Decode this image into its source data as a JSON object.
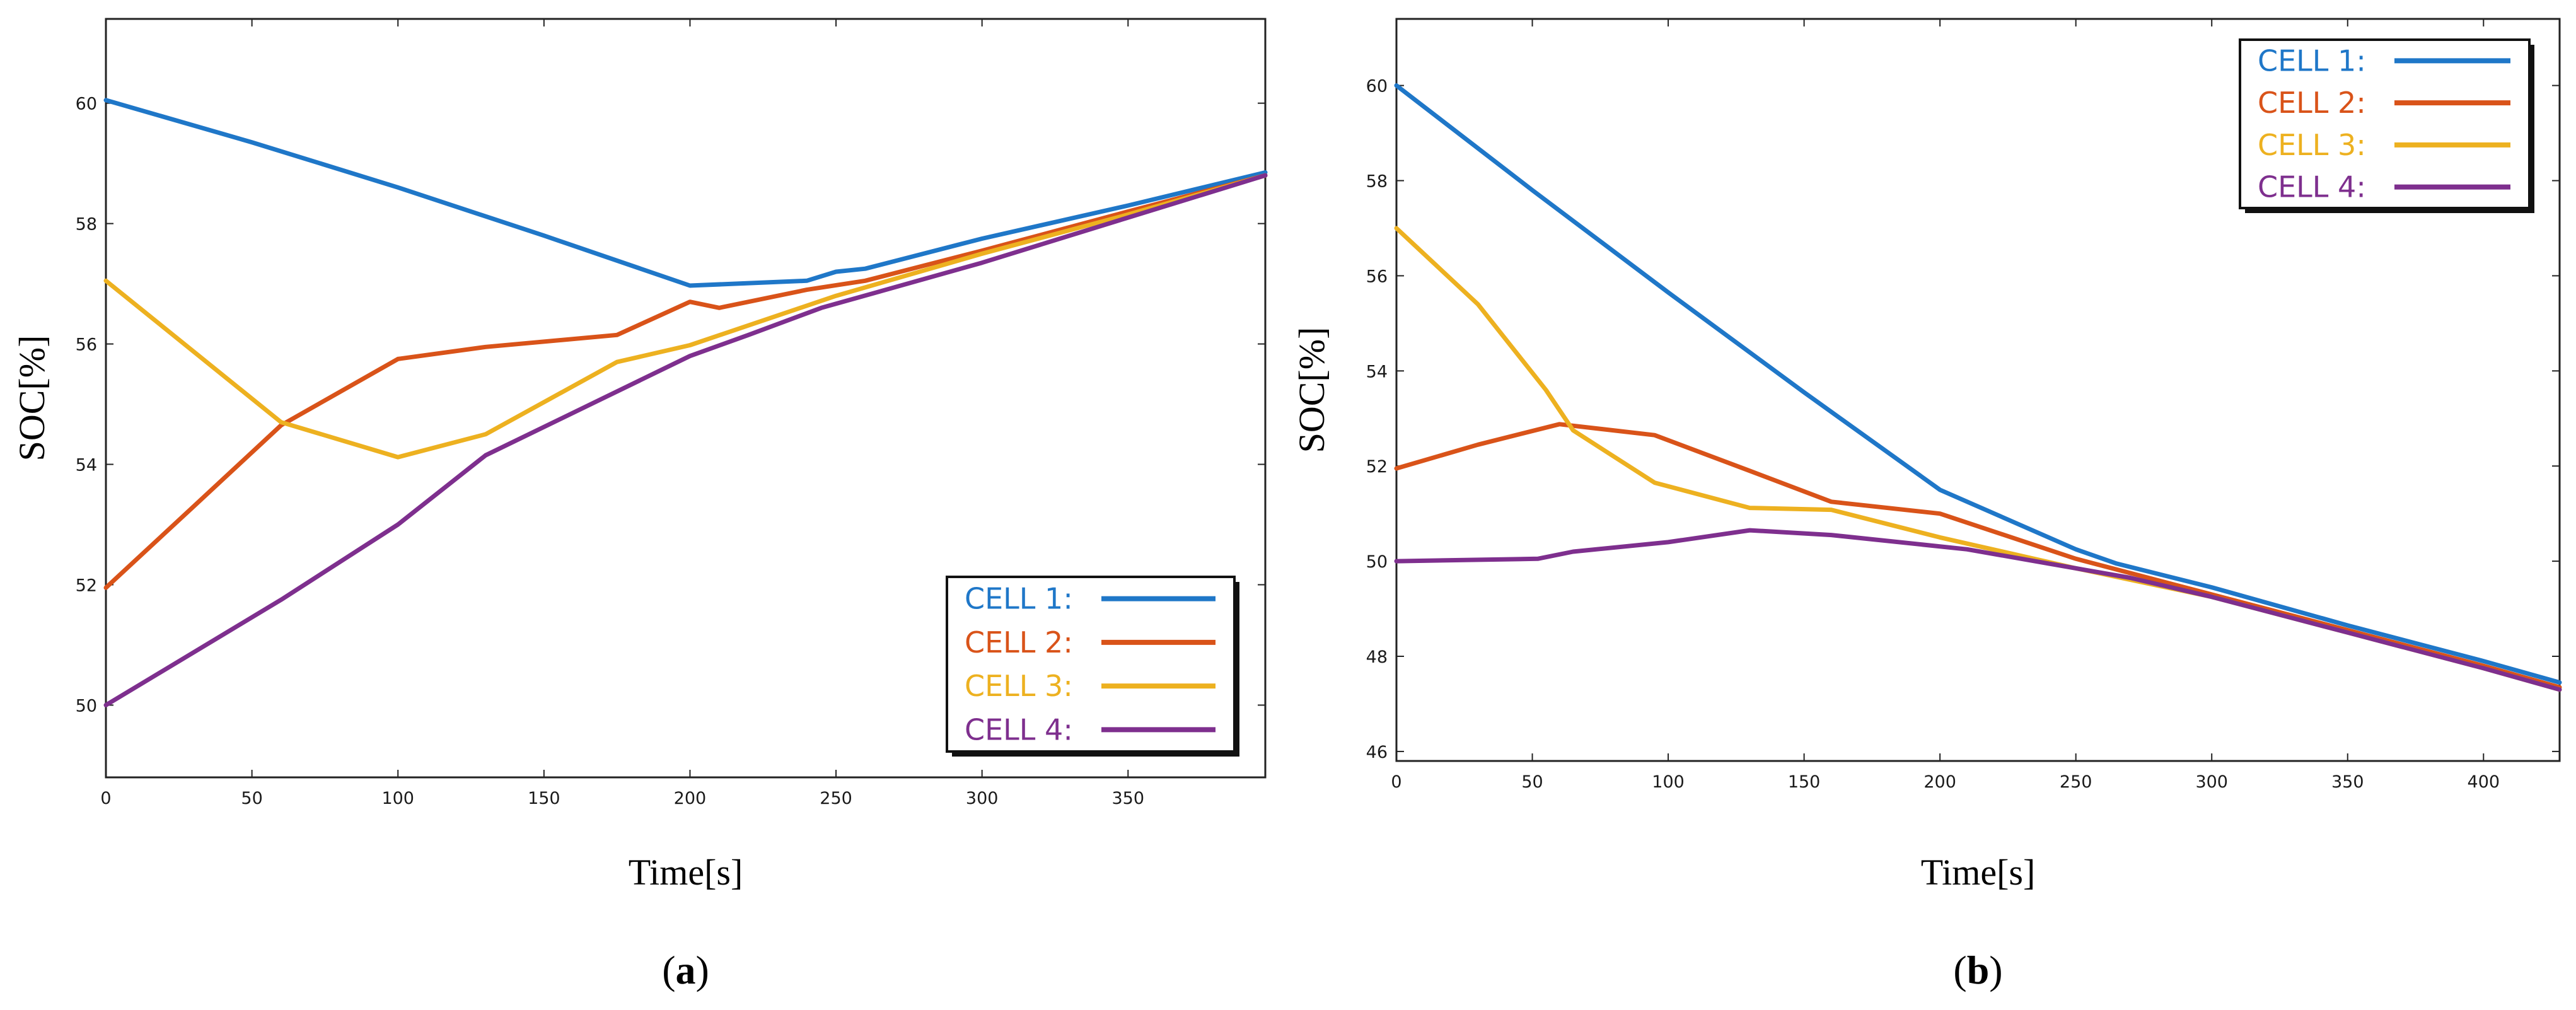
{
  "chart_data": [
    {
      "type": "line",
      "panel_label": "a",
      "xlabel": "Time[s]",
      "ylabel": "SOC[%]",
      "xlim": [
        0,
        397
      ],
      "ylim": [
        48.8,
        61.4
      ],
      "xticks": [
        0,
        50,
        100,
        150,
        200,
        250,
        300,
        350
      ],
      "yticks": [
        50,
        52,
        54,
        56,
        58,
        60
      ],
      "legend_position": "bottom-right",
      "series": [
        {
          "name": "CELL 1:",
          "color": "#1f77c8",
          "x": [
            0,
            50,
            100,
            150,
            200,
            240,
            250,
            260,
            300,
            350,
            397
          ],
          "y": [
            60.05,
            59.35,
            58.6,
            57.8,
            56.97,
            57.05,
            57.2,
            57.25,
            57.75,
            58.3,
            58.85
          ]
        },
        {
          "name": "CELL 2:",
          "color": "#d95319",
          "x": [
            0,
            30,
            60,
            100,
            130,
            175,
            200,
            210,
            240,
            260,
            300,
            350,
            397
          ],
          "y": [
            51.95,
            53.3,
            54.65,
            55.75,
            55.95,
            56.15,
            56.7,
            56.6,
            56.9,
            57.05,
            57.55,
            58.2,
            58.8
          ]
        },
        {
          "name": "CELL 3:",
          "color": "#edb120",
          "x": [
            0,
            60,
            100,
            130,
            175,
            200,
            250,
            300,
            350,
            397
          ],
          "y": [
            57.05,
            54.7,
            54.12,
            54.5,
            55.7,
            55.98,
            56.8,
            57.5,
            58.15,
            58.8
          ]
        },
        {
          "name": "CELL 4:",
          "color": "#7e2f8e",
          "x": [
            0,
            60,
            100,
            130,
            200,
            220,
            245,
            300,
            350,
            397
          ],
          "y": [
            50.0,
            51.75,
            53.0,
            54.15,
            55.8,
            56.15,
            56.6,
            57.35,
            58.1,
            58.8
          ]
        }
      ]
    },
    {
      "type": "line",
      "panel_label": "b",
      "xlabel": "Time[s]",
      "ylabel": "SOC[%]",
      "xlim": [
        0,
        428
      ],
      "ylim": [
        45.8,
        61.4
      ],
      "xticks": [
        0,
        50,
        100,
        150,
        200,
        250,
        300,
        350,
        400
      ],
      "yticks": [
        46,
        48,
        50,
        52,
        54,
        56,
        58,
        60
      ],
      "legend_position": "top-right",
      "series": [
        {
          "name": "CELL 1:",
          "color": "#1f77c8",
          "x": [
            0,
            50,
            100,
            150,
            200,
            250,
            265,
            300,
            350,
            400,
            428
          ],
          "y": [
            60.0,
            57.8,
            55.65,
            53.55,
            51.5,
            50.25,
            49.95,
            49.45,
            48.65,
            47.9,
            47.45
          ]
        },
        {
          "name": "CELL 2:",
          "color": "#d95319",
          "x": [
            0,
            30,
            60,
            95,
            130,
            160,
            200,
            250,
            300,
            350,
            400,
            428
          ],
          "y": [
            51.95,
            52.45,
            52.88,
            52.65,
            51.9,
            51.25,
            51.0,
            50.05,
            49.3,
            48.55,
            47.8,
            47.35
          ]
        },
        {
          "name": "CELL 3:",
          "color": "#edb120",
          "x": [
            0,
            30,
            55,
            65,
            95,
            130,
            160,
            200,
            250,
            300,
            350,
            400,
            428
          ],
          "y": [
            57.0,
            55.4,
            53.6,
            52.75,
            51.65,
            51.12,
            51.08,
            50.5,
            49.85,
            49.25,
            48.5,
            47.75,
            47.3
          ]
        },
        {
          "name": "CELL 4:",
          "color": "#7e2f8e",
          "x": [
            0,
            52,
            65,
            100,
            130,
            160,
            210,
            240,
            270,
            300,
            350,
            400,
            428
          ],
          "y": [
            50.0,
            50.05,
            50.2,
            50.4,
            50.65,
            50.55,
            50.25,
            49.95,
            49.65,
            49.25,
            48.5,
            47.75,
            47.3
          ]
        }
      ]
    }
  ]
}
